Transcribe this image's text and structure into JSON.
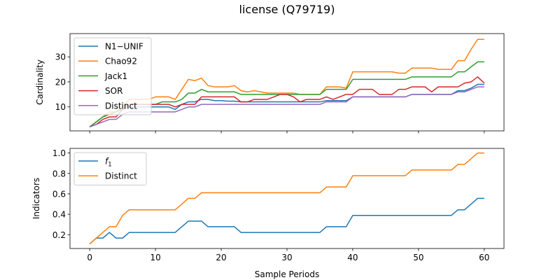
{
  "figure": {
    "title": "license (Q79719)"
  },
  "chart_data": [
    {
      "type": "line",
      "ylabel": "Cardinality",
      "xlim": [
        -3,
        63
      ],
      "ylim": [
        0.4,
        39.3
      ],
      "yticks": [
        10,
        20,
        30
      ],
      "xticks": [
        0,
        10,
        20,
        30,
        40,
        50,
        60
      ],
      "show_xtick_labels": false,
      "legend": "top-left",
      "x": [
        0,
        1,
        2,
        3,
        4,
        5,
        6,
        7,
        8,
        9,
        10,
        11,
        12,
        13,
        14,
        15,
        16,
        17,
        18,
        19,
        20,
        21,
        22,
        23,
        24,
        25,
        26,
        27,
        28,
        29,
        30,
        31,
        32,
        33,
        34,
        35,
        36,
        37,
        38,
        39,
        40,
        41,
        42,
        43,
        44,
        45,
        46,
        47,
        48,
        49,
        50,
        51,
        52,
        53,
        54,
        55,
        56,
        57,
        58,
        59,
        60
      ],
      "series": [
        {
          "name": "N1−UNIF",
          "color": "#1f77b4",
          "values": [
            2,
            4,
            6,
            7,
            8,
            9,
            10,
            10,
            10,
            10,
            10,
            10,
            10,
            9,
            11,
            12,
            12,
            13,
            13,
            12.5,
            12.5,
            12.3,
            12.3,
            12,
            12,
            12,
            12,
            12,
            12,
            12,
            12,
            12,
            12,
            12,
            12,
            12,
            12.5,
            12.5,
            12.5,
            12.5,
            14,
            14,
            14,
            14,
            14,
            14,
            14,
            14,
            14,
            15,
            15,
            15,
            15,
            15,
            15,
            15,
            16.5,
            16.5,
            17.5,
            19,
            19
          ]
        },
        {
          "name": "Chao92",
          "color": "#ff7f0e",
          "values": [
            2,
            4,
            6,
            8,
            8,
            10,
            13,
            13,
            13,
            13,
            14,
            14,
            14,
            13,
            17,
            21,
            20.5,
            21.5,
            18.5,
            18,
            18,
            18,
            18.5,
            16.5,
            16,
            16.5,
            16,
            15.5,
            15.5,
            15.5,
            15.5,
            15.5,
            15,
            15,
            15,
            15,
            18,
            18,
            18,
            17.5,
            24,
            24,
            24,
            24,
            24,
            24,
            24,
            23.5,
            23.5,
            25.5,
            25.5,
            25.5,
            25.5,
            25,
            25,
            25,
            28.5,
            28.5,
            33,
            37,
            37
          ]
        },
        {
          "name": "Jack1",
          "color": "#2ca02c",
          "values": [
            2,
            4,
            6,
            7,
            8,
            9,
            11,
            11,
            11,
            11,
            11,
            12,
            12,
            12,
            13,
            15.5,
            15.5,
            17,
            16,
            16,
            16,
            16,
            16,
            15,
            15,
            15,
            15,
            15,
            15,
            15,
            15,
            15,
            15,
            15,
            15,
            15,
            17,
            17,
            17,
            17,
            21,
            21,
            21,
            21,
            21,
            21,
            21,
            21,
            21,
            22,
            22,
            22,
            22,
            22,
            22,
            22,
            24,
            24,
            26,
            28,
            28
          ]
        },
        {
          "name": "SOR",
          "color": "#d62728",
          "values": [
            2,
            3,
            5,
            6,
            6,
            9,
            11,
            11,
            11,
            11,
            11,
            11,
            11,
            10,
            11,
            11,
            11,
            14,
            14,
            14,
            14,
            14,
            14,
            12,
            12,
            13,
            13,
            13,
            14,
            15,
            15,
            14,
            12,
            13,
            13,
            13,
            14,
            13,
            14,
            15,
            15,
            17,
            17,
            17,
            15,
            15,
            15,
            17,
            17,
            18,
            18,
            18,
            16,
            18,
            18,
            18,
            18,
            19.5,
            20,
            22,
            19.5
          ]
        },
        {
          "name": "Distinct",
          "color": "#9467bd",
          "values": [
            2,
            3,
            4,
            5,
            5,
            7,
            8,
            8,
            8,
            8,
            8,
            8,
            8,
            8,
            9,
            10,
            10,
            11,
            11,
            11,
            11,
            11,
            11,
            11,
            11,
            11,
            11,
            11,
            11,
            11,
            11,
            11,
            11,
            11,
            11,
            11,
            12,
            12,
            12,
            12,
            14,
            14,
            14,
            14,
            14,
            14,
            14,
            14,
            14,
            15,
            15,
            15,
            15,
            15,
            15,
            15,
            16,
            16,
            17,
            18,
            18
          ]
        }
      ]
    },
    {
      "type": "line",
      "xlabel": "Sample Periods",
      "ylabel": "Indicators",
      "xlim": [
        -3,
        63
      ],
      "ylim": [
        0.065,
        1.045
      ],
      "yticks": [
        0.2,
        0.4,
        0.6,
        0.8,
        1.0
      ],
      "ytick_labels": [
        "0.2",
        "0.4",
        "0.6",
        "0.8",
        "1.0"
      ],
      "xticks": [
        0,
        10,
        20,
        30,
        40,
        50,
        60
      ],
      "xtick_labels": [
        "0",
        "10",
        "20",
        "30",
        "40",
        "50",
        "60"
      ],
      "legend": "top-left",
      "x": [
        0,
        1,
        2,
        3,
        4,
        5,
        6,
        7,
        8,
        9,
        10,
        11,
        12,
        13,
        14,
        15,
        16,
        17,
        18,
        19,
        20,
        21,
        22,
        23,
        24,
        25,
        26,
        27,
        28,
        29,
        30,
        31,
        32,
        33,
        34,
        35,
        36,
        37,
        38,
        39,
        40,
        41,
        42,
        43,
        44,
        45,
        46,
        47,
        48,
        49,
        50,
        51,
        52,
        53,
        54,
        55,
        56,
        57,
        58,
        59,
        60
      ],
      "series": [
        {
          "name": "f",
          "name_sub": "1",
          "color": "#1f77b4",
          "values": [
            0.11,
            0.167,
            0.167,
            0.222,
            0.167,
            0.167,
            0.222,
            0.222,
            0.222,
            0.222,
            0.222,
            0.222,
            0.222,
            0.222,
            0.278,
            0.333,
            0.333,
            0.333,
            0.278,
            0.278,
            0.278,
            0.278,
            0.278,
            0.222,
            0.222,
            0.222,
            0.222,
            0.222,
            0.222,
            0.222,
            0.222,
            0.222,
            0.222,
            0.222,
            0.222,
            0.222,
            0.278,
            0.278,
            0.278,
            0.278,
            0.389,
            0.389,
            0.389,
            0.389,
            0.389,
            0.389,
            0.389,
            0.389,
            0.389,
            0.389,
            0.389,
            0.389,
            0.389,
            0.389,
            0.389,
            0.389,
            0.444,
            0.444,
            0.5,
            0.556,
            0.556
          ]
        },
        {
          "name": "Distinct",
          "color": "#ff7f0e",
          "values": [
            0.11,
            0.167,
            0.222,
            0.278,
            0.278,
            0.389,
            0.444,
            0.444,
            0.444,
            0.444,
            0.444,
            0.444,
            0.444,
            0.444,
            0.5,
            0.556,
            0.556,
            0.611,
            0.611,
            0.611,
            0.611,
            0.611,
            0.611,
            0.611,
            0.611,
            0.611,
            0.611,
            0.611,
            0.611,
            0.611,
            0.611,
            0.611,
            0.611,
            0.611,
            0.611,
            0.611,
            0.667,
            0.667,
            0.667,
            0.667,
            0.778,
            0.778,
            0.778,
            0.778,
            0.778,
            0.778,
            0.778,
            0.778,
            0.778,
            0.833,
            0.833,
            0.833,
            0.833,
            0.833,
            0.833,
            0.833,
            0.889,
            0.889,
            0.944,
            1.0,
            1.0
          ]
        }
      ]
    }
  ]
}
